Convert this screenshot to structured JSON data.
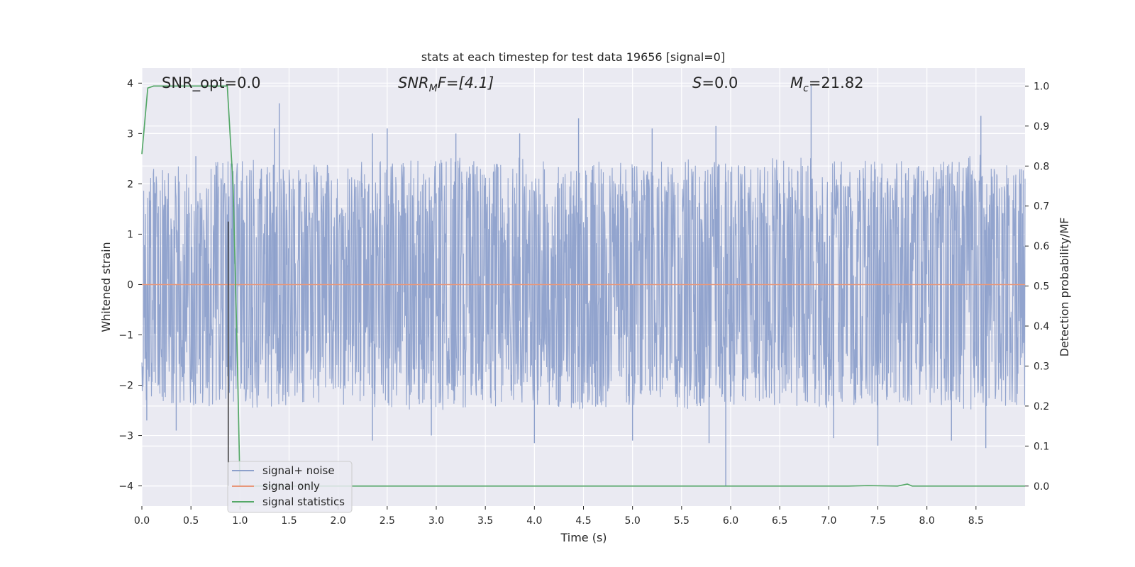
{
  "chart_data": {
    "type": "line",
    "title": "stats at each timestep for test data 19656 [signal=0]",
    "xlabel": "Time (s)",
    "ylabel": "Whitened strain",
    "ylabel_right": "Detection probability/MF",
    "xlim": [
      0.0,
      9.0
    ],
    "ylim": [
      -4.4,
      4.3
    ],
    "ylim_right": [
      -0.05,
      1.045
    ],
    "x_ticks": [
      0.0,
      0.5,
      1.0,
      1.5,
      2.0,
      2.5,
      3.0,
      3.5,
      4.0,
      4.5,
      5.0,
      5.5,
      6.0,
      6.5,
      7.0,
      7.5,
      8.0,
      8.5
    ],
    "x_tick_labels": [
      "0.0",
      "0.5",
      "1.0",
      "1.5",
      "2.0",
      "2.5",
      "3.0",
      "3.5",
      "4.0",
      "4.5",
      "5.0",
      "5.5",
      "6.0",
      "6.5",
      "7.0",
      "7.5",
      "8.0",
      "8.5"
    ],
    "y_ticks": [
      -4,
      -3,
      -2,
      -1,
      0,
      1,
      2,
      3,
      4
    ],
    "y_tick_labels": [
      "−4",
      "−3",
      "−2",
      "−1",
      "0",
      "1",
      "2",
      "3",
      "4"
    ],
    "y_ticks_right": [
      0.0,
      0.1,
      0.2,
      0.3,
      0.4,
      0.5,
      0.6,
      0.7,
      0.8,
      0.9,
      1.0
    ],
    "y_tick_labels_right": [
      "0.0",
      "0.1",
      "0.2",
      "0.3",
      "0.4",
      "0.5",
      "0.6",
      "0.7",
      "0.8",
      "0.9",
      "1.0"
    ],
    "grid": true,
    "legend_position": "lower-left",
    "annotations": {
      "snr_opt": "SNR_opt=0.0",
      "snr_mf_main": "SNR",
      "snr_mf_sub": "M",
      "snr_mf_rest": "F=[4.1]",
      "s_main": "S",
      "s_rest": "=0.0",
      "mc_main": "M",
      "mc_sub": "c",
      "mc_rest": "=21.82"
    },
    "series": [
      {
        "name": "signal+ noise",
        "axis": "left",
        "color": "#8da0cb",
        "envelope_upper": [
          [
            0.0,
            2.3
          ],
          [
            0.5,
            2.4
          ],
          [
            1.0,
            2.5
          ],
          [
            1.5,
            2.4
          ],
          [
            2.0,
            2.4
          ],
          [
            2.5,
            2.5
          ],
          [
            3.0,
            2.5
          ],
          [
            3.5,
            2.6
          ],
          [
            4.0,
            2.5
          ],
          [
            4.5,
            2.5
          ],
          [
            5.0,
            2.4
          ],
          [
            5.5,
            2.5
          ],
          [
            6.0,
            2.4
          ],
          [
            6.5,
            2.6
          ],
          [
            7.0,
            2.5
          ],
          [
            7.5,
            2.5
          ],
          [
            8.0,
            2.4
          ],
          [
            8.5,
            2.6
          ],
          [
            9.0,
            2.4
          ]
        ],
        "envelope_lower": [
          [
            0.0,
            -2.3
          ],
          [
            0.5,
            -2.4
          ],
          [
            1.0,
            -2.5
          ],
          [
            1.5,
            -2.4
          ],
          [
            2.0,
            -2.4
          ],
          [
            2.5,
            -2.5
          ],
          [
            3.0,
            -2.5
          ],
          [
            3.5,
            -2.5
          ],
          [
            4.0,
            -2.4
          ],
          [
            4.5,
            -2.5
          ],
          [
            5.0,
            -2.4
          ],
          [
            5.5,
            -2.5
          ],
          [
            6.0,
            -2.4
          ],
          [
            6.5,
            -2.4
          ],
          [
            7.0,
            -2.5
          ],
          [
            7.5,
            -2.4
          ],
          [
            8.0,
            -2.4
          ],
          [
            8.5,
            -2.5
          ],
          [
            9.0,
            -2.4
          ]
        ],
        "spikes": [
          [
            0.55,
            2.55
          ],
          [
            0.92,
            2.4
          ],
          [
            1.4,
            3.6
          ],
          [
            1.35,
            3.1
          ],
          [
            2.35,
            3.0
          ],
          [
            2.5,
            3.1
          ],
          [
            3.2,
            3.0
          ],
          [
            3.85,
            3.0
          ],
          [
            4.45,
            3.3
          ],
          [
            5.2,
            3.1
          ],
          [
            5.85,
            3.15
          ],
          [
            6.82,
            3.95
          ],
          [
            8.55,
            3.35
          ],
          [
            0.05,
            -2.7
          ],
          [
            0.35,
            -2.9
          ],
          [
            2.35,
            -3.1
          ],
          [
            2.95,
            -3.0
          ],
          [
            4.0,
            -3.15
          ],
          [
            5.0,
            -3.1
          ],
          [
            5.78,
            -3.15
          ],
          [
            5.95,
            -4.0
          ],
          [
            7.05,
            -3.05
          ],
          [
            7.5,
            -3.2
          ],
          [
            8.25,
            -3.1
          ],
          [
            8.6,
            -3.25
          ]
        ]
      },
      {
        "name": "signal only",
        "axis": "left",
        "color": "#e8977a",
        "points": [
          [
            0.0,
            0.0
          ],
          [
            9.0,
            0.0
          ]
        ]
      },
      {
        "name": "signal statistics",
        "axis": "right",
        "color": "#55a868",
        "points": [
          [
            0.0,
            0.83
          ],
          [
            0.06,
            0.995
          ],
          [
            0.12,
            1.0
          ],
          [
            0.87,
            1.0
          ],
          [
            0.93,
            0.75
          ],
          [
            0.97,
            0.35
          ],
          [
            1.0,
            0.0
          ],
          [
            7.2,
            0.0
          ],
          [
            7.4,
            0.001
          ],
          [
            7.7,
            0.0
          ],
          [
            7.8,
            0.005
          ],
          [
            7.85,
            0.0
          ],
          [
            9.0,
            0.0
          ]
        ]
      }
    ],
    "vertical_marker": {
      "x": 0.88,
      "y_range": [
        -4.0,
        1.25
      ],
      "color": "#333333"
    }
  }
}
